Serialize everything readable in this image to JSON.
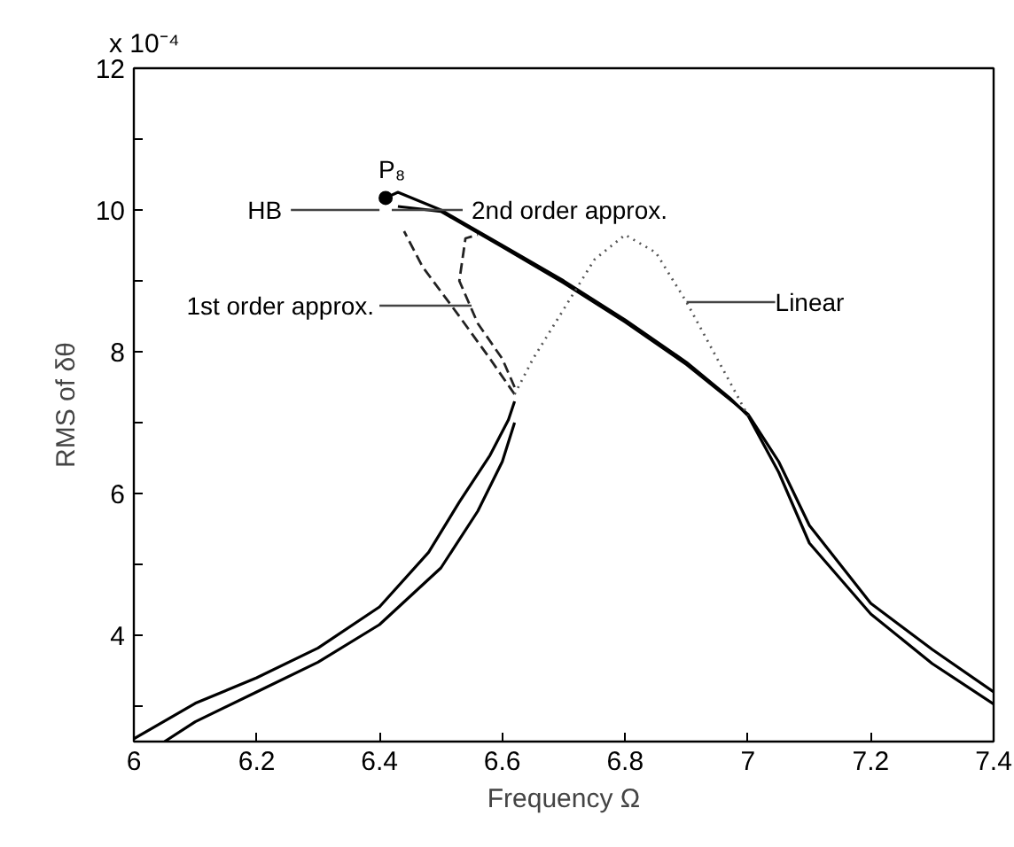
{
  "chart_data": {
    "type": "line",
    "xlabel": "Frequency Ω",
    "ylabel": "RMS of δθ",
    "xlim": [
      6,
      7.4
    ],
    "xticks": [
      6,
      6.2,
      6.4,
      6.6,
      6.8,
      7,
      7.2,
      7.4
    ],
    "ylim": [
      2.5,
      12
    ],
    "yticks": [
      {
        "value": 3,
        "label": null
      },
      4,
      {
        "value": 5,
        "label": null
      },
      6,
      {
        "value": 7,
        "label": null
      },
      8,
      {
        "value": 9,
        "label": null
      },
      10,
      {
        "value": 11,
        "label": null
      },
      12
    ],
    "grid": false,
    "series": [
      {
        "line_style": "solid",
        "color": "#000000",
        "x": [
          6.0,
          6.1,
          6.2,
          6.3,
          6.4,
          6.48,
          6.53,
          6.58,
          6.61,
          6.62
        ],
        "values": [
          2.54,
          3.04,
          3.4,
          3.82,
          4.4,
          5.17,
          5.88,
          6.54,
          7.04,
          7.3
        ]
      },
      {
        "line_style": "solid",
        "color": "#000000",
        "x": [
          6.41,
          6.43,
          6.5,
          6.6,
          6.7,
          6.8,
          6.9,
          6.97,
          7.0,
          7.05,
          7.1,
          7.2,
          7.3,
          7.4
        ],
        "values": [
          10.17,
          10.25,
          10.0,
          9.5,
          9.0,
          8.45,
          7.85,
          7.35,
          7.1,
          6.3,
          5.3,
          4.3,
          3.6,
          3.03
        ]
      },
      {
        "line_style": "solid",
        "color": "#000000",
        "x": [
          6.05,
          6.1,
          6.2,
          6.3,
          6.4,
          6.5,
          6.56,
          6.6,
          6.62
        ],
        "values": [
          2.5,
          2.78,
          3.2,
          3.62,
          4.15,
          4.95,
          5.75,
          6.45,
          7.0
        ]
      },
      {
        "line_style": "solid",
        "color": "#000000",
        "x": [
          6.43,
          6.5,
          6.6,
          6.7,
          6.8,
          6.9,
          6.97,
          7.0,
          7.05,
          7.1,
          7.2,
          7.3,
          7.4
        ],
        "values": [
          10.05,
          9.98,
          9.48,
          8.97,
          8.42,
          7.82,
          7.33,
          7.12,
          6.45,
          5.55,
          4.45,
          3.8,
          3.2
        ]
      },
      {
        "line_style": "dashed",
        "color": "#222222",
        "x": [
          6.62,
          6.58,
          6.53,
          6.47,
          6.44
        ],
        "values": [
          7.4,
          7.9,
          8.5,
          9.2,
          9.7
        ]
      },
      {
        "line_style": "dashed",
        "color": "#222222",
        "x": [
          6.62,
          6.6,
          6.56,
          6.53,
          6.54,
          6.56
        ],
        "values": [
          7.5,
          7.9,
          8.4,
          9.0,
          9.6,
          9.65
        ]
      },
      {
        "line_style": "dotted",
        "color": "#555555",
        "x": [
          6.62,
          6.65,
          6.7,
          6.75,
          6.8,
          6.85,
          6.9,
          6.95,
          7.0
        ],
        "values": [
          7.4,
          7.9,
          8.6,
          9.3,
          9.65,
          9.4,
          8.7,
          7.9,
          7.1
        ]
      },
      {
        "type": "scatter",
        "marker": "circle",
        "color": "#000000",
        "x": [
          6.41
        ],
        "values": [
          10.17
        ]
      }
    ],
    "annotations": [
      "x 10⁻⁴",
      {
        "text": "P₈",
        "x": 6.41,
        "y": 10.17
      },
      {
        "text": "HB",
        "x": 6.4,
        "y": 10.0
      },
      {
        "text": "2nd order approx.",
        "x": 6.42,
        "y": 10.0
      },
      {
        "text": "1st order approx.",
        "x": 6.55,
        "y": 8.65
      },
      {
        "text": "Linear",
        "x": 6.9,
        "y": 8.7
      }
    ]
  }
}
